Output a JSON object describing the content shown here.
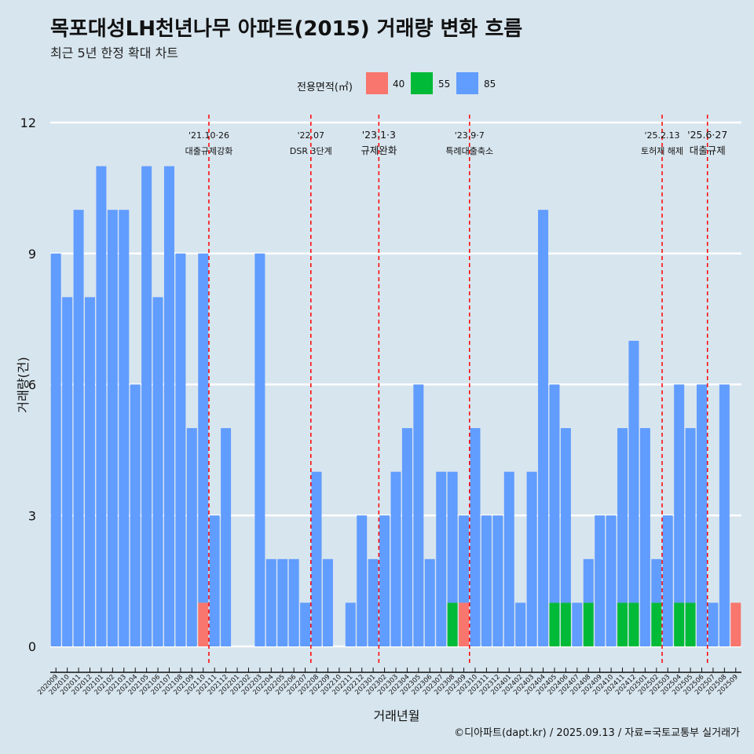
{
  "title": "목포대성LH천년나무 아파트(2015) 거래량 변화 흐름",
  "subtitle": "최근 5년 한정 확대 차트",
  "caption": "©디아파트(dapt.kr) / 2025.09.13 / 자료=국토교통부 실거래가",
  "legend": {
    "title": "전용면적(㎡)",
    "position": "top",
    "items": [
      {
        "label": "40",
        "color": "#f8766d"
      },
      {
        "label": "55",
        "color": "#00ba38"
      },
      {
        "label": "85",
        "color": "#619cff"
      }
    ]
  },
  "chart_data": {
    "type": "bar",
    "stacked": true,
    "xlabel": "거래년월",
    "ylabel": "거래량(건)",
    "ylim": [
      0,
      12
    ],
    "yticks": [
      0,
      3,
      6,
      9,
      12
    ],
    "grid": "horizontal",
    "categories": [
      "202009",
      "202010",
      "202011",
      "202012",
      "202101",
      "202102",
      "202103",
      "202104",
      "202105",
      "202106",
      "202107",
      "202108",
      "202109",
      "202110",
      "202111",
      "202112",
      "202201",
      "202202",
      "202203",
      "202204",
      "202205",
      "202206",
      "202207",
      "202208",
      "202209",
      "202210",
      "202211",
      "202212",
      "202301",
      "202302",
      "202303",
      "202304",
      "202305",
      "202306",
      "202307",
      "202308",
      "202309",
      "202310",
      "202311",
      "202312",
      "202401",
      "202402",
      "202403",
      "202404",
      "202405",
      "202406",
      "202407",
      "202408",
      "202409",
      "202410",
      "202411",
      "202412",
      "202501",
      "202502",
      "202503",
      "202504",
      "202505",
      "202506",
      "202507",
      "202508",
      "202509"
    ],
    "series": [
      {
        "name": "40",
        "color": "#f8766d",
        "values": [
          0,
          0,
          0,
          0,
          0,
          0,
          0,
          0,
          0,
          0,
          0,
          0,
          0,
          1,
          0,
          0,
          0,
          0,
          0,
          0,
          0,
          0,
          0,
          0,
          0,
          0,
          0,
          0,
          0,
          0,
          0,
          0,
          0,
          0,
          0,
          0,
          1,
          0,
          0,
          0,
          0,
          0,
          0,
          0,
          0,
          0,
          0,
          0,
          0,
          0,
          0,
          0,
          0,
          0,
          0,
          0,
          0,
          0,
          0,
          0,
          1
        ]
      },
      {
        "name": "55",
        "color": "#00ba38",
        "values": [
          0,
          0,
          0,
          0,
          0,
          0,
          0,
          0,
          0,
          0,
          0,
          0,
          0,
          0,
          0,
          0,
          0,
          0,
          0,
          0,
          0,
          0,
          0,
          0,
          0,
          0,
          0,
          0,
          0,
          0,
          0,
          0,
          0,
          0,
          0,
          1,
          0,
          0,
          0,
          0,
          0,
          0,
          0,
          0,
          1,
          1,
          0,
          1,
          0,
          0,
          1,
          1,
          0,
          1,
          0,
          1,
          1,
          0,
          0,
          0,
          0
        ]
      },
      {
        "name": "85",
        "color": "#619cff",
        "values": [
          9,
          8,
          10,
          8,
          11,
          10,
          10,
          6,
          11,
          8,
          11,
          9,
          5,
          8,
          3,
          5,
          0,
          0,
          9,
          2,
          2,
          2,
          1,
          4,
          2,
          0,
          1,
          3,
          2,
          3,
          4,
          5,
          6,
          2,
          4,
          3,
          2,
          5,
          3,
          3,
          4,
          1,
          4,
          10,
          5,
          4,
          1,
          1,
          3,
          3,
          4,
          6,
          5,
          1,
          3,
          5,
          4,
          6,
          1,
          6,
          0
        ]
      }
    ],
    "events": [
      {
        "after": "202110",
        "date": "'21.10·26",
        "label": "대출규제강화"
      },
      {
        "after": "202207",
        "date": "'22.07",
        "label": "DSR 3단계"
      },
      {
        "after": "202301",
        "date": "'23.1·3",
        "label": "규제완화"
      },
      {
        "after": "202309",
        "date": "'23.9·7",
        "label": "특례대출축소"
      },
      {
        "after": "202502",
        "date": "'25.2.13",
        "label": "토허제 해제"
      },
      {
        "after": "202506",
        "date": "'25.6·27",
        "label": "대출규제"
      }
    ]
  }
}
